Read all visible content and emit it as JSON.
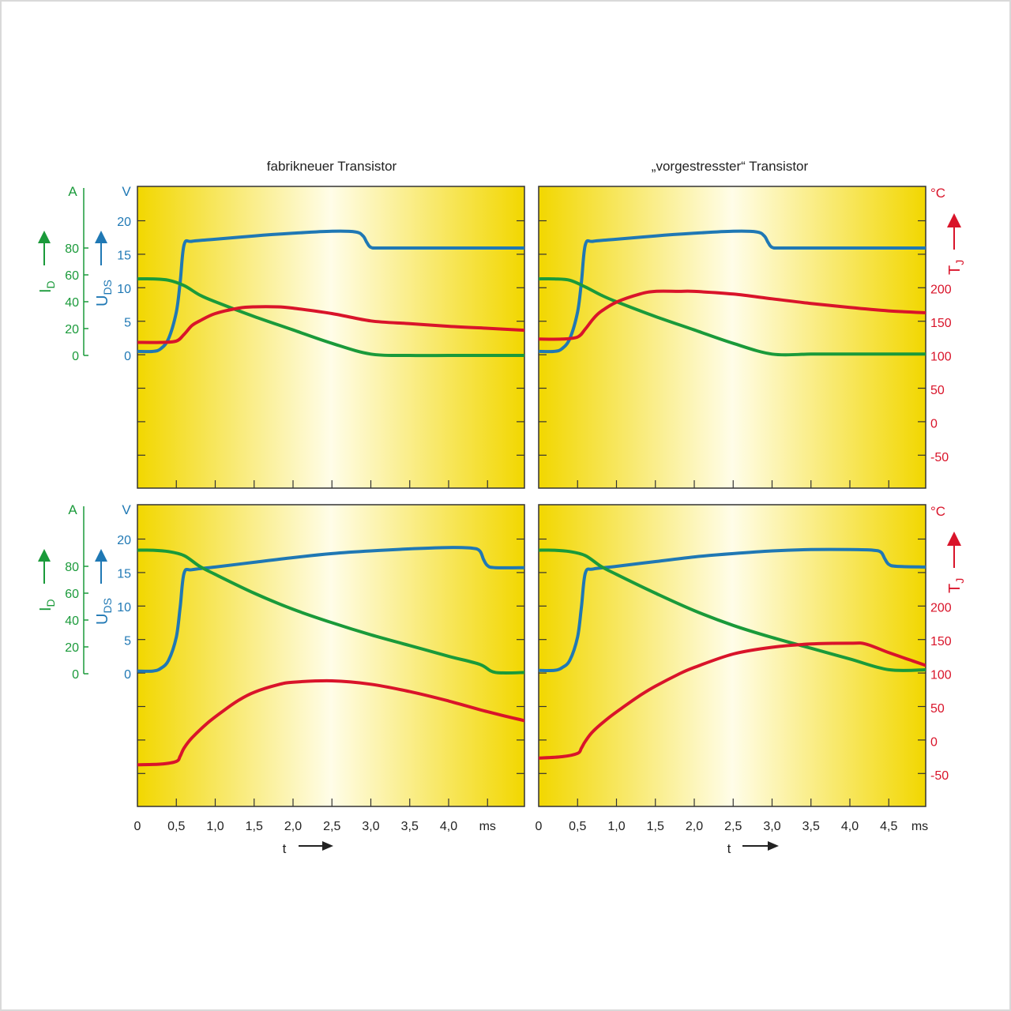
{
  "colors": {
    "current": "#1a9a3a",
    "voltage": "#1f78b4",
    "temperature": "#d9142a",
    "panel_edge": "#f2d700",
    "panel_center": "#fffde8",
    "axis": "#333333"
  },
  "columns": {
    "left_title": "fabrikneuer Transistor",
    "right_title": "„vorgestresster“ Transistor"
  },
  "left_axes": {
    "current_unit": "A",
    "current_ticks": [
      "0",
      "20",
      "40",
      "60",
      "80"
    ],
    "current_symbol": "I",
    "current_subscript": "D",
    "voltage_unit": "V",
    "voltage_ticks": [
      "0",
      "5",
      "10",
      "15",
      "20"
    ],
    "voltage_symbol": "U",
    "voltage_subscript": "DS"
  },
  "right_axis": {
    "unit": "°C",
    "ticks": [
      "-50",
      "0",
      "50",
      "100",
      "150",
      "200"
    ],
    "symbol": "T",
    "subscript": "J"
  },
  "x_axis": {
    "left_ticks": [
      "0",
      "0,5",
      "1,0",
      "1,5",
      "2,0",
      "2,5",
      "3,0",
      "3,5",
      "4,0"
    ],
    "left_unit": "ms",
    "right_ticks": [
      "0",
      "0,5",
      "1,0",
      "1,5",
      "2,0",
      "2,5",
      "3,0",
      "3,5",
      "4,0",
      "4,5"
    ],
    "right_unit": "ms",
    "label": "t"
  },
  "chart_data": [
    {
      "type": "line",
      "panel": "top-left",
      "xlim": [
        0,
        5
      ],
      "ylim_current": [
        0,
        100
      ],
      "ylim_voltage": [
        0,
        25
      ],
      "ylim_temperature": [
        -50,
        250
      ],
      "series": [
        {
          "key": "voltage",
          "x": [
            0,
            0.2,
            0.3,
            0.4,
            0.5,
            0.55,
            0.6,
            0.7,
            1.0,
            1.5,
            2.0,
            2.5,
            2.8,
            2.9,
            2.95,
            3.0,
            3.1,
            3.5,
            4.0,
            4.5,
            5.0
          ],
          "y": [
            0.6,
            0.6,
            1.0,
            2.5,
            6.5,
            11,
            16.5,
            17.0,
            17.3,
            17.8,
            18.2,
            18.5,
            18.4,
            17.8,
            16.8,
            16.1,
            16.0,
            16.0,
            16.0,
            16.0,
            16.0
          ]
        },
        {
          "key": "current",
          "x": [
            0,
            0.2,
            0.4,
            0.6,
            0.8,
            1.0,
            1.5,
            2.0,
            2.5,
            3.0,
            3.5,
            4.0,
            4.5,
            5.0
          ],
          "y": [
            57,
            57,
            56,
            52,
            45,
            40,
            29,
            19,
            9,
            1,
            0,
            0,
            0,
            0
          ]
        },
        {
          "key": "temperature",
          "x": [
            0,
            0.3,
            0.5,
            0.6,
            0.7,
            0.8,
            1.0,
            1.3,
            1.5,
            1.8,
            2.0,
            2.5,
            3.0,
            3.5,
            4.0,
            4.5,
            5.0
          ],
          "y": [
            120,
            120,
            122,
            132,
            145,
            152,
            163,
            171,
            173,
            173,
            171,
            163,
            152,
            148,
            144,
            141,
            138
          ]
        }
      ]
    },
    {
      "type": "line",
      "panel": "top-right",
      "xlim": [
        0,
        5
      ],
      "ylim_current": [
        0,
        100
      ],
      "ylim_voltage": [
        0,
        25
      ],
      "ylim_temperature": [
        -50,
        250
      ],
      "series": [
        {
          "key": "voltage",
          "x": [
            0,
            0.2,
            0.3,
            0.4,
            0.5,
            0.55,
            0.6,
            0.7,
            1.0,
            1.5,
            2.0,
            2.5,
            2.8,
            2.9,
            2.95,
            3.0,
            3.1,
            3.5,
            4.0,
            4.5,
            5.0
          ],
          "y": [
            0.6,
            0.6,
            1.0,
            2.5,
            6.5,
            11,
            16.5,
            17.0,
            17.3,
            17.8,
            18.2,
            18.5,
            18.4,
            17.8,
            16.8,
            16.1,
            16.0,
            16.0,
            16.0,
            16.0,
            16.0
          ]
        },
        {
          "key": "current",
          "x": [
            0,
            0.2,
            0.4,
            0.6,
            0.8,
            1.0,
            1.5,
            2.0,
            2.5,
            3.0,
            3.5,
            4.0,
            4.5,
            5.0
          ],
          "y": [
            57,
            57,
            56,
            51,
            45,
            40,
            29,
            19,
            9,
            1,
            1,
            1,
            1,
            1
          ]
        },
        {
          "key": "temperature",
          "x": [
            0,
            0.3,
            0.5,
            0.6,
            0.7,
            0.8,
            1.0,
            1.3,
            1.5,
            1.8,
            2.0,
            2.5,
            3.0,
            3.5,
            4.0,
            4.5,
            5.0
          ],
          "y": [
            125,
            125,
            128,
            140,
            155,
            166,
            180,
            192,
            196,
            196,
            196,
            192,
            185,
            178,
            172,
            167,
            164
          ]
        }
      ]
    },
    {
      "type": "line",
      "panel": "bottom-left",
      "xlim": [
        0,
        5
      ],
      "ylim_current": [
        0,
        100
      ],
      "ylim_voltage": [
        0,
        25
      ],
      "ylim_temperature": [
        -50,
        250
      ],
      "series": [
        {
          "key": "voltage",
          "x": [
            0,
            0.2,
            0.3,
            0.4,
            0.5,
            0.55,
            0.6,
            0.7,
            1.0,
            1.5,
            2.0,
            2.5,
            3.0,
            3.5,
            4.0,
            4.3,
            4.4,
            4.45,
            4.5,
            4.6,
            5.0
          ],
          "y": [
            0.4,
            0.4,
            0.8,
            2.0,
            5.5,
            10,
            15.0,
            15.5,
            15.9,
            16.6,
            17.3,
            17.9,
            18.3,
            18.6,
            18.8,
            18.7,
            18.3,
            17.0,
            16.1,
            15.8,
            15.8
          ]
        },
        {
          "key": "current",
          "x": [
            0,
            0.2,
            0.4,
            0.6,
            0.8,
            1.0,
            1.5,
            2.0,
            2.5,
            3.0,
            3.5,
            4.0,
            4.4,
            4.6,
            5.0
          ],
          "y": [
            92,
            92,
            91,
            88,
            80,
            74,
            60,
            48,
            38,
            29,
            21,
            13,
            7,
            1,
            1
          ]
        },
        {
          "key": "temperature",
          "x": [
            0,
            0.3,
            0.5,
            0.55,
            0.6,
            0.7,
            0.9,
            1.1,
            1.3,
            1.5,
            1.8,
            2.0,
            2.5,
            3.0,
            3.5,
            4.0,
            4.5,
            5.0
          ],
          "y": [
            -35,
            -34,
            -30,
            -22,
            -10,
            5,
            27,
            45,
            61,
            73,
            84,
            88,
            90,
            85,
            74,
            60,
            44,
            30
          ]
        }
      ]
    },
    {
      "type": "line",
      "panel": "bottom-right",
      "xlim": [
        0,
        5
      ],
      "ylim_current": [
        0,
        100
      ],
      "ylim_voltage": [
        0,
        25
      ],
      "ylim_temperature": [
        -50,
        250
      ],
      "series": [
        {
          "key": "voltage",
          "x": [
            0,
            0.2,
            0.3,
            0.4,
            0.5,
            0.55,
            0.6,
            0.7,
            1.0,
            1.5,
            2.0,
            2.5,
            3.0,
            3.5,
            4.0,
            4.3,
            4.4,
            4.45,
            4.5,
            4.6,
            5.0
          ],
          "y": [
            0.5,
            0.5,
            0.9,
            2.0,
            5.5,
            10,
            15.0,
            15.6,
            16.0,
            16.7,
            17.4,
            17.9,
            18.3,
            18.5,
            18.5,
            18.4,
            18.1,
            17.1,
            16.3,
            16.0,
            15.9
          ]
        },
        {
          "key": "current",
          "x": [
            0,
            0.2,
            0.4,
            0.6,
            0.8,
            1.0,
            1.5,
            2.0,
            2.5,
            3.0,
            3.5,
            4.0,
            4.5,
            5.0
          ],
          "y": [
            92,
            92,
            91,
            88,
            80,
            74,
            60,
            47,
            36,
            27,
            19,
            11,
            3,
            3
          ]
        },
        {
          "key": "temperature",
          "x": [
            0,
            0.3,
            0.5,
            0.55,
            0.6,
            0.7,
            0.9,
            1.1,
            1.3,
            1.5,
            1.8,
            2.0,
            2.5,
            3.0,
            3.5,
            4.0,
            4.2,
            4.5,
            4.8,
            5.0
          ],
          "y": [
            -25,
            -23,
            -18,
            -10,
            0,
            15,
            35,
            52,
            68,
            82,
            100,
            110,
            130,
            140,
            145,
            146,
            145,
            132,
            120,
            112
          ]
        }
      ]
    }
  ]
}
